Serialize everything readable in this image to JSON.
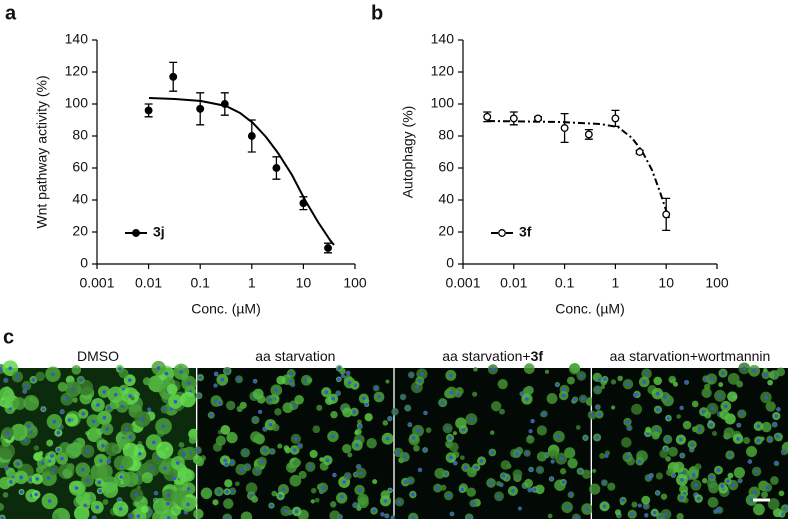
{
  "chart_data": [
    {
      "type": "scatter",
      "panel": "a",
      "ylabel": "Wnt pathway activity (%)",
      "xlabel": "Conc. (µM)",
      "xscale": "log",
      "xlim": [
        0.001,
        100
      ],
      "xticks": [
        0.001,
        0.01,
        0.1,
        1,
        10,
        100
      ],
      "ylim": [
        0,
        140
      ],
      "yticks": [
        0,
        20,
        40,
        60,
        80,
        100,
        120,
        140
      ],
      "series": [
        {
          "name": "3j",
          "color": "#000000",
          "marker": "filled",
          "line_style": "solid",
          "x": [
            0.01,
            0.03,
            0.1,
            0.3,
            1,
            3,
            10,
            30
          ],
          "values": [
            96,
            117,
            97,
            100,
            80,
            60,
            38,
            10
          ],
          "errors": [
            4,
            9,
            10,
            7,
            10,
            7,
            4,
            3
          ]
        }
      ],
      "legend": "lower left"
    },
    {
      "type": "scatter",
      "panel": "b",
      "ylabel": "Autophagy (%)",
      "xlabel": "Conc. (µM)",
      "xscale": "log",
      "xlim": [
        0.001,
        100
      ],
      "xticks": [
        0.001,
        0.01,
        0.1,
        1,
        10,
        100
      ],
      "ylim": [
        0,
        140
      ],
      "yticks": [
        0,
        20,
        40,
        60,
        80,
        100,
        120,
        140
      ],
      "series": [
        {
          "name": "3f",
          "color": "#000000",
          "marker": "open",
          "line_style": "dash-dot",
          "x": [
            0.003,
            0.01,
            0.03,
            0.1,
            0.3,
            1,
            3,
            10
          ],
          "values": [
            92,
            91,
            91,
            85,
            81,
            91,
            70,
            31
          ],
          "errors": [
            3,
            4,
            1,
            9,
            3,
            5,
            1,
            10
          ]
        }
      ],
      "legend": "lower left"
    }
  ],
  "images": {
    "panel": "c",
    "panels": [
      {
        "text": "DMSO"
      },
      {
        "text": "aa starvation"
      },
      {
        "text": "aa starvation+",
        "bold": "3f"
      },
      {
        "text": "aa starvation+wortmannin"
      }
    ]
  }
}
